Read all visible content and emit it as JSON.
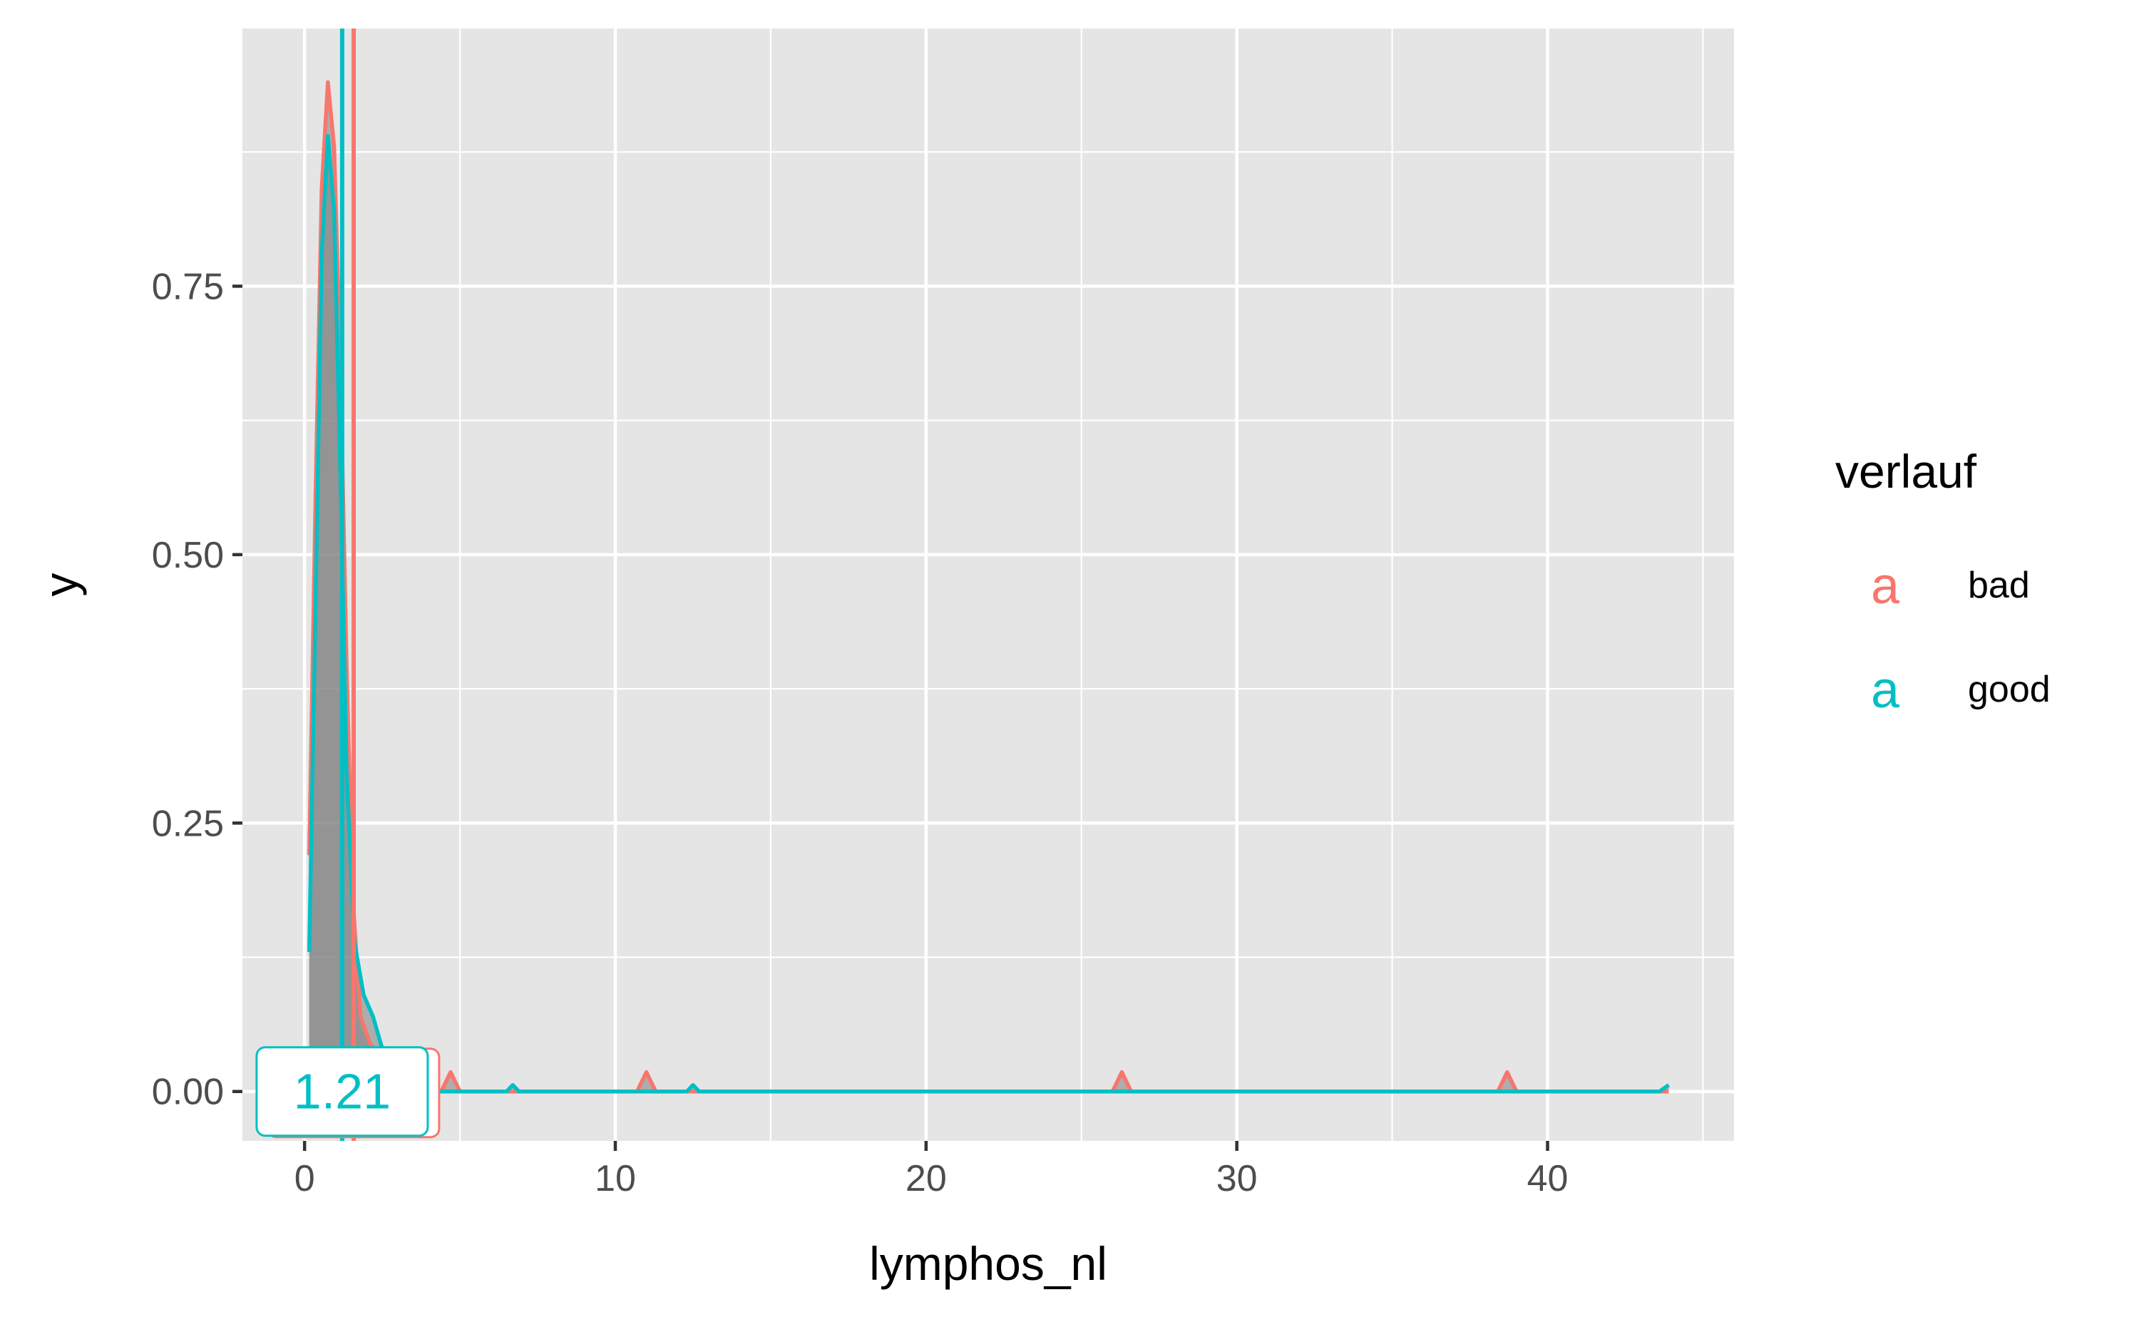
{
  "chart_data": {
    "type": "area",
    "title": "",
    "xlabel": "lymphos_nl",
    "ylabel": "y",
    "xlim": [
      -2.0,
      46.0
    ],
    "ylim": [
      -0.046,
      0.99
    ],
    "x_ticks": [
      0,
      10,
      20,
      30,
      40
    ],
    "x_tick_labels": [
      "0",
      "10",
      "20",
      "30",
      "40"
    ],
    "y_ticks": [
      0.0,
      0.25,
      0.5,
      0.75
    ],
    "y_tick_labels": [
      "0.00",
      "0.25",
      "0.50",
      "0.75"
    ],
    "grid": true,
    "legend": {
      "title": "verlauf",
      "position": "right",
      "key_glyph": "a",
      "entries": [
        "bad",
        "good"
      ]
    },
    "series": [
      {
        "name": "bad",
        "color": "#F8766D",
        "median": 1.58,
        "median_label": "",
        "points": [
          [
            0.15,
            0.22
          ],
          [
            0.35,
            0.55
          ],
          [
            0.55,
            0.84
          ],
          [
            0.75,
            0.94
          ],
          [
            0.95,
            0.88
          ],
          [
            1.15,
            0.68
          ],
          [
            1.35,
            0.4
          ],
          [
            1.55,
            0.18
          ],
          [
            1.8,
            0.07
          ],
          [
            2.1,
            0.045
          ],
          [
            2.5,
            0.03
          ],
          [
            3.0,
            0.015
          ],
          [
            3.8,
            0.004
          ],
          [
            4.4,
            0.0
          ],
          [
            4.7,
            0.018
          ],
          [
            5.0,
            0.0
          ],
          [
            10.7,
            0.0
          ],
          [
            11.0,
            0.018
          ],
          [
            11.3,
            0.0
          ],
          [
            26.0,
            0.0
          ],
          [
            26.3,
            0.018
          ],
          [
            26.6,
            0.0
          ],
          [
            38.4,
            0.0
          ],
          [
            38.7,
            0.018
          ],
          [
            39.0,
            0.0
          ],
          [
            43.9,
            0.0
          ]
        ]
      },
      {
        "name": "good",
        "color": "#00BFC4",
        "median": 1.21,
        "median_label": "1.21",
        "points": [
          [
            0.15,
            0.13
          ],
          [
            0.35,
            0.45
          ],
          [
            0.55,
            0.78
          ],
          [
            0.75,
            0.89
          ],
          [
            0.95,
            0.82
          ],
          [
            1.15,
            0.58
          ],
          [
            1.35,
            0.3
          ],
          [
            1.6,
            0.14
          ],
          [
            1.9,
            0.09
          ],
          [
            2.2,
            0.07
          ],
          [
            2.5,
            0.04
          ],
          [
            2.9,
            0.02
          ],
          [
            3.5,
            0.006
          ],
          [
            4.2,
            0.0
          ],
          [
            6.5,
            0.0
          ],
          [
            6.7,
            0.006
          ],
          [
            6.9,
            0.0
          ],
          [
            12.3,
            0.0
          ],
          [
            12.5,
            0.006
          ],
          [
            12.7,
            0.0
          ],
          [
            43.6,
            0.0
          ],
          [
            43.9,
            0.006
          ]
        ]
      }
    ]
  }
}
